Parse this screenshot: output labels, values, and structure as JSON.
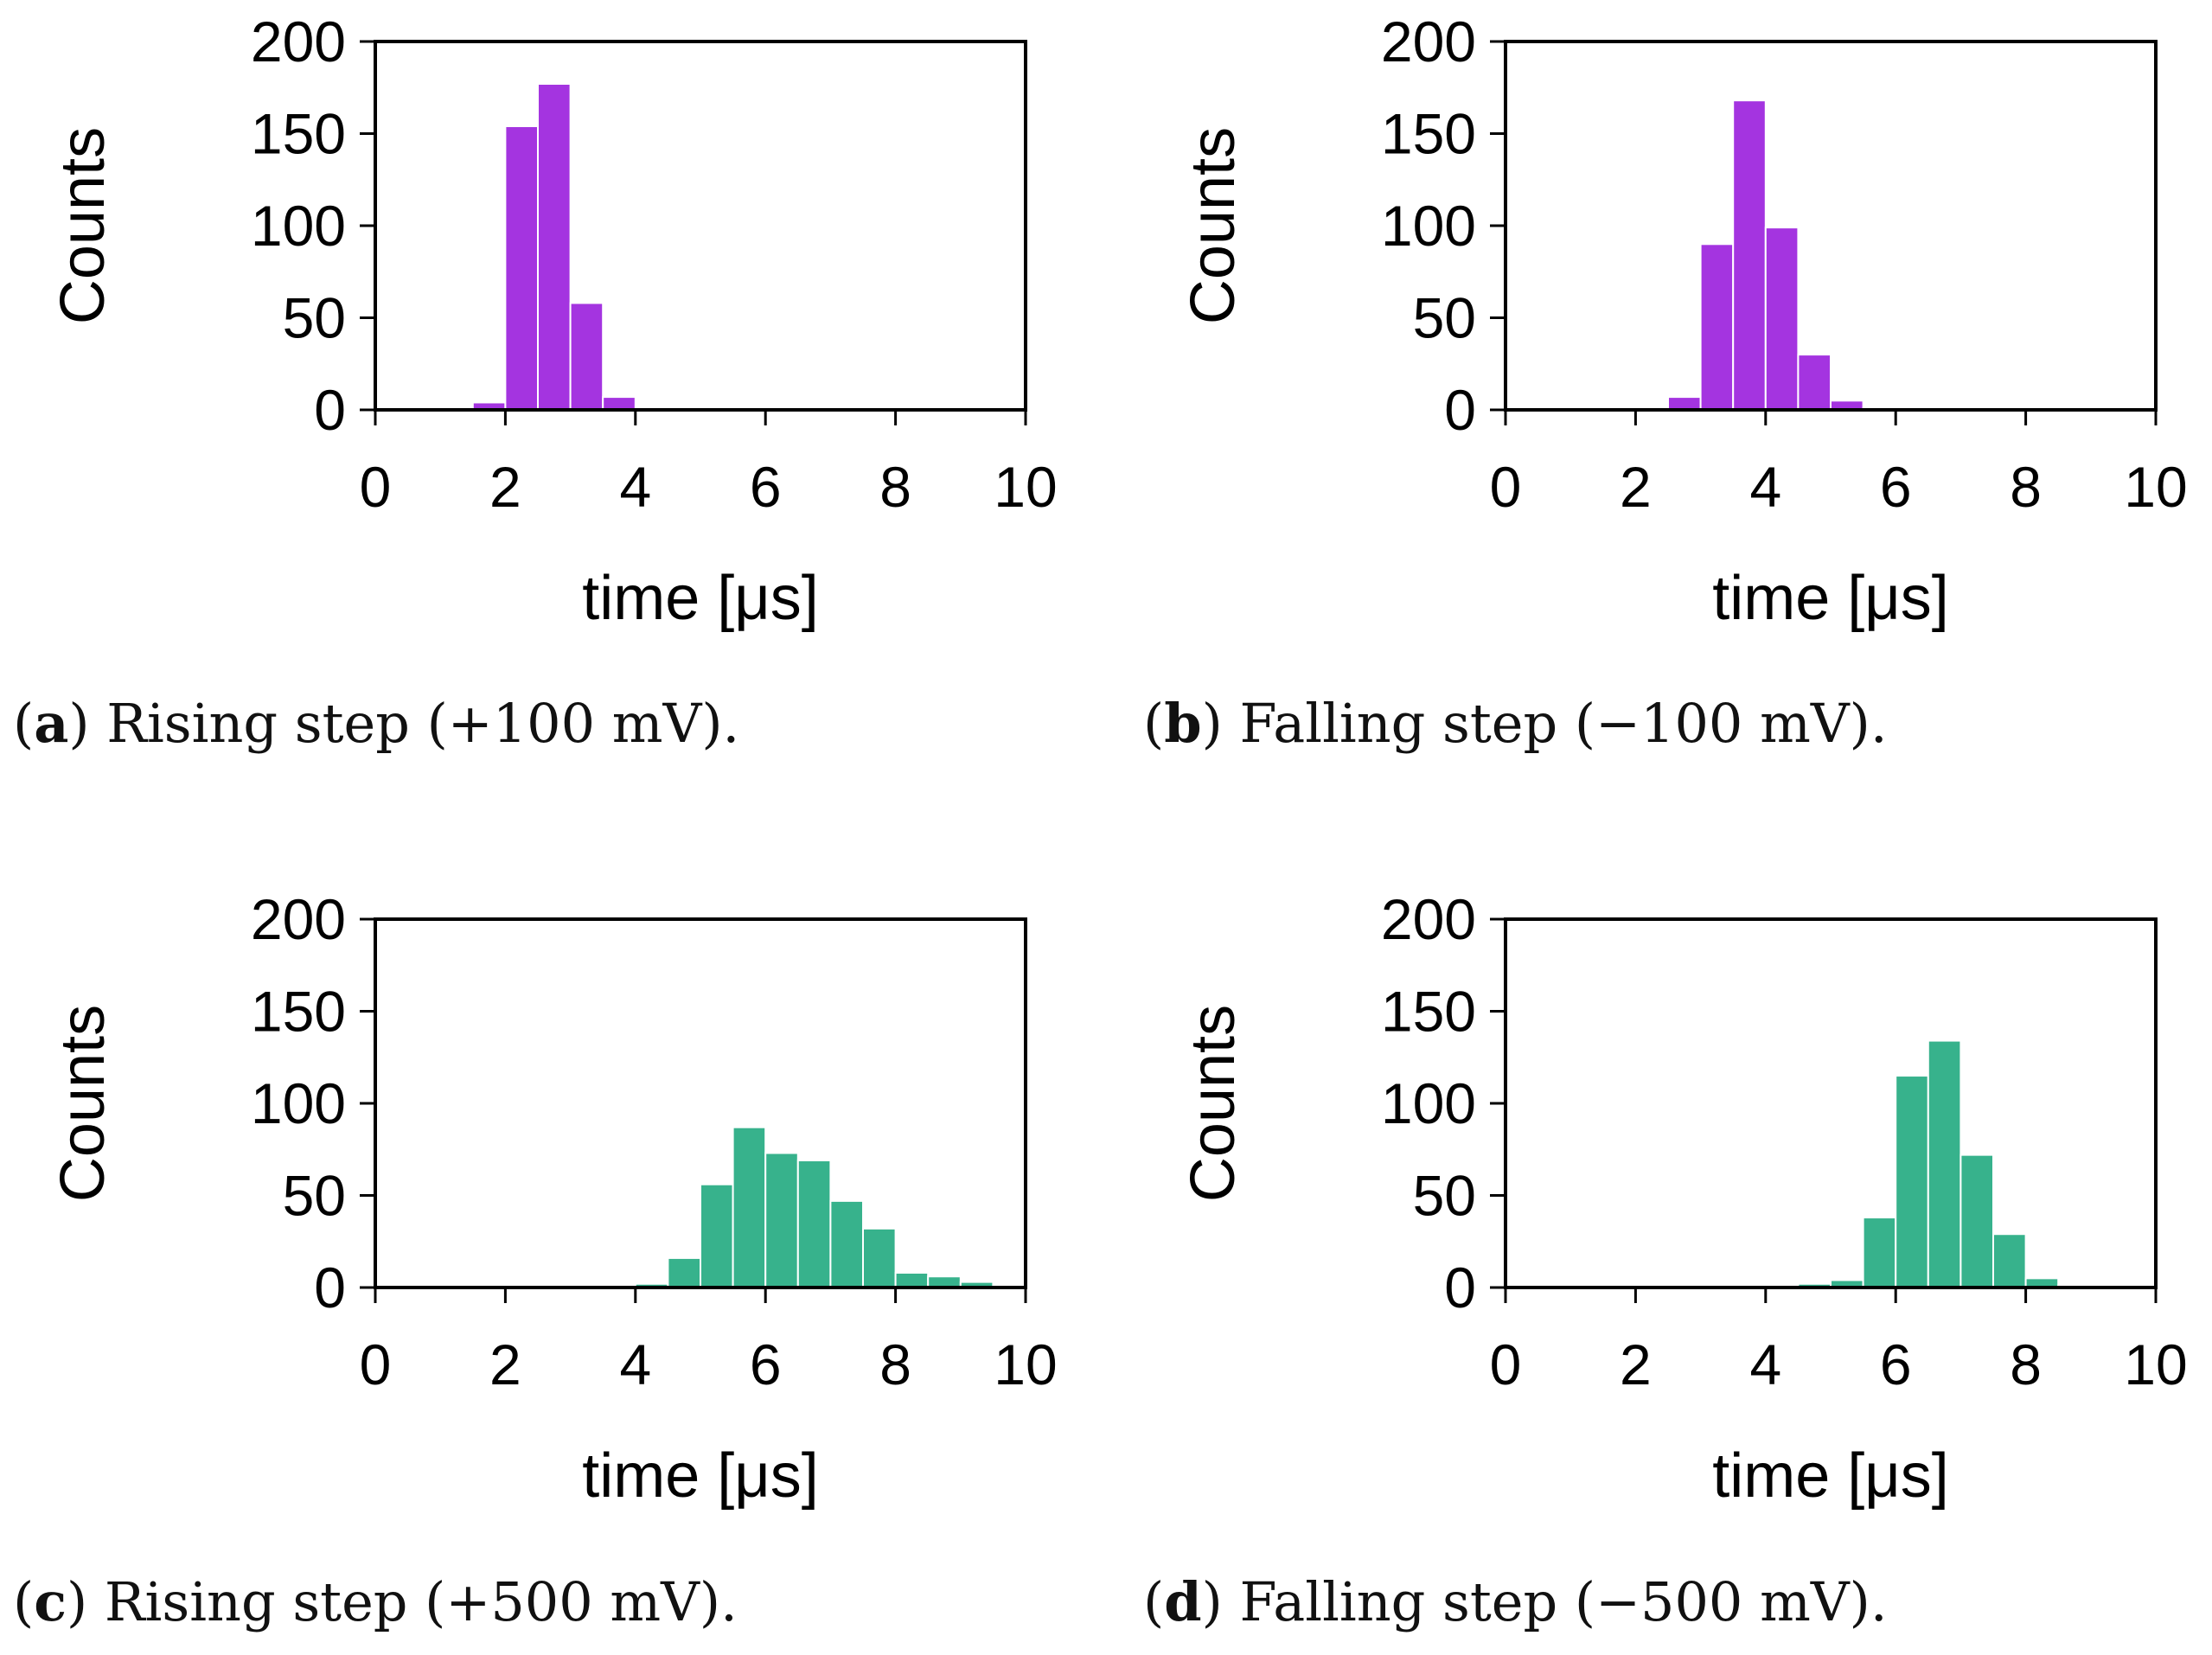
{
  "chart_data": [
    {
      "id": "a",
      "type": "bar",
      "caption_letter": "a",
      "caption_text": "Rising step (+100 mV).",
      "xlabel": "time [μs]",
      "ylabel": "Counts",
      "xlim": [
        0,
        10
      ],
      "ylim": [
        0,
        200
      ],
      "xticks": [
        "0",
        "2",
        "4",
        "6",
        "8",
        "10"
      ],
      "yticks": [
        "0",
        "50",
        "100",
        "150",
        "200"
      ],
      "bin_width": 0.5,
      "bin_starts": [
        1.5,
        2.0,
        2.5,
        3.0,
        3.5
      ],
      "values": [
        4,
        154,
        177,
        58,
        7
      ],
      "color": "#a434e0"
    },
    {
      "id": "b",
      "type": "bar",
      "caption_letter": "b",
      "caption_text": "Falling step (−100 mV).",
      "xlabel": "time [μs]",
      "ylabel": "Counts",
      "xlim": [
        0,
        10
      ],
      "ylim": [
        0,
        200
      ],
      "xticks": [
        "0",
        "2",
        "4",
        "6",
        "8",
        "10"
      ],
      "yticks": [
        "0",
        "50",
        "100",
        "150",
        "200"
      ],
      "bin_width": 0.5,
      "bin_starts": [
        2.5,
        3.0,
        3.5,
        4.0,
        4.5,
        5.0,
        5.5
      ],
      "values": [
        7,
        90,
        168,
        99,
        30,
        5,
        1
      ],
      "color": "#a434e0"
    },
    {
      "id": "c",
      "type": "bar",
      "caption_letter": "c",
      "caption_text": "Rising step (+500 mV).",
      "xlabel": "time [μs]",
      "ylabel": "Counts",
      "xlim": [
        0,
        10
      ],
      "ylim": [
        0,
        200
      ],
      "xticks": [
        "0",
        "2",
        "4",
        "6",
        "8",
        "10"
      ],
      "yticks": [
        "0",
        "50",
        "100",
        "150",
        "200"
      ],
      "bin_width": 0.5,
      "bin_starts": [
        4.0,
        4.5,
        5.0,
        5.5,
        6.0,
        6.5,
        7.0,
        7.5,
        8.0,
        8.5,
        9.0,
        9.5
      ],
      "values": [
        2,
        16,
        56,
        87,
        73,
        69,
        47,
        32,
        8,
        6,
        3,
        1
      ],
      "color": "#37b28c"
    },
    {
      "id": "d",
      "type": "bar",
      "caption_letter": "d",
      "caption_text": "Falling step (−500 mV).",
      "xlabel": "time [μs]",
      "ylabel": "Counts",
      "xlim": [
        0,
        10
      ],
      "ylim": [
        0,
        200
      ],
      "xticks": [
        "0",
        "2",
        "4",
        "6",
        "8",
        "10"
      ],
      "yticks": [
        "0",
        "50",
        "100",
        "150",
        "200"
      ],
      "bin_width": 0.5,
      "bin_starts": [
        4.5,
        5.0,
        5.5,
        6.0,
        6.5,
        7.0,
        7.5,
        8.0,
        8.5
      ],
      "values": [
        2,
        4,
        38,
        115,
        134,
        72,
        29,
        5,
        1
      ],
      "color": "#37b28c"
    }
  ]
}
